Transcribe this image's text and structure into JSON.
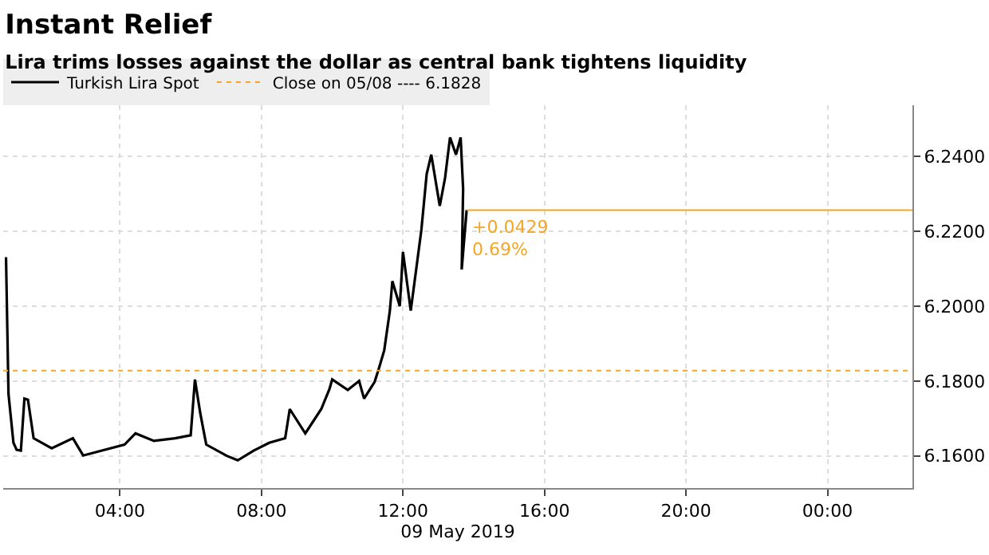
{
  "chart_data": {
    "type": "line",
    "title": "Instant Relief",
    "subtitle": "Lira trims losses against the dollar as central bank tightens liquidity",
    "xlabel": "09 May 2019",
    "x": [
      0.78,
      0.85,
      0.99,
      1.08,
      1.2,
      1.3,
      1.4,
      1.56,
      2.07,
      2.67,
      2.96,
      4.13,
      4.44,
      4.96,
      5.56,
      6.0,
      6.12,
      6.27,
      6.44,
      7.02,
      7.33,
      7.78,
      8.22,
      8.67,
      8.8,
      9.24,
      9.69,
      9.92,
      10.0,
      10.44,
      10.76,
      10.9,
      11.2,
      11.33,
      11.47,
      11.63,
      11.7,
      11.91,
      12.0,
      12.22,
      12.52,
      12.67,
      12.8,
      13.04,
      13.19,
      13.33,
      13.5,
      13.63,
      13.7,
      13.66,
      13.8
    ],
    "series": [
      {
        "name": "Turkish Lira Spot",
        "color": "#000000",
        "values": [
          6.2131,
          6.1765,
          6.1635,
          6.1616,
          6.1614,
          6.1753,
          6.175,
          6.1647,
          6.162,
          6.1647,
          6.1601,
          6.163,
          6.166,
          6.164,
          6.1647,
          6.1655,
          6.1804,
          6.1714,
          6.163,
          6.16,
          6.1588,
          6.1614,
          6.1635,
          6.1647,
          6.1725,
          6.166,
          6.1725,
          6.1778,
          6.1804,
          6.1776,
          6.18,
          6.1753,
          6.1798,
          6.1837,
          6.1882,
          6.1988,
          6.2067,
          6.2,
          6.2145,
          6.1988,
          6.2204,
          6.2353,
          6.2405,
          6.2268,
          6.2343,
          6.2451,
          6.2405,
          6.2451,
          6.2314,
          6.2098,
          6.2257
        ]
      }
    ],
    "ref_lines": [
      {
        "axis": "y",
        "value": 6.1828,
        "label": "Close on 05/08 ---- 6.1828",
        "color": "#f5a623",
        "line_style": "dotted"
      },
      {
        "axis": "y",
        "value": 6.2257,
        "color": "#f5a623",
        "line_style": "solid"
      }
    ],
    "annotations": [
      {
        "text": "+0.0429",
        "x": 13.8,
        "y": 6.2257
      },
      {
        "text": "0.69%",
        "x": 13.8,
        "y": 6.2257
      }
    ],
    "xlim": [
      0.7,
      26.4
    ],
    "xticks": [
      {
        "value": 4,
        "label": "04:00"
      },
      {
        "value": 8,
        "label": "08:00"
      },
      {
        "value": 12,
        "label": "12:00"
      },
      {
        "value": 16,
        "label": "16:00"
      },
      {
        "value": 20,
        "label": "20:00"
      },
      {
        "value": 24,
        "label": "00:00"
      }
    ],
    "ylim": [
      6.1514,
      6.2537
    ],
    "yticks": [
      {
        "value": 6.16,
        "label": "6.1600"
      },
      {
        "value": 6.18,
        "label": "6.1800"
      },
      {
        "value": 6.2,
        "label": "6.2000"
      },
      {
        "value": 6.22,
        "label": "6.2200"
      },
      {
        "value": 6.24,
        "label": "6.2400"
      }
    ],
    "grid": true,
    "legend": "top left",
    "marker": "none",
    "line_style": "solid"
  }
}
